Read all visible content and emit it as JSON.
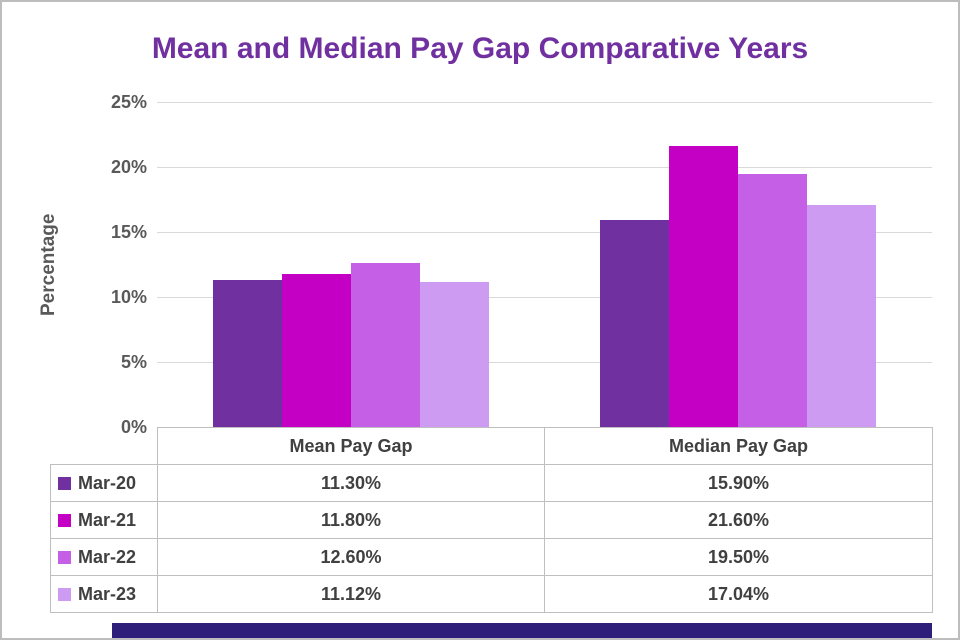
{
  "title": "Mean and Median Pay Gap Comparative Years",
  "colors": {
    "title": "#7030A0",
    "axis_text": "#595959",
    "table_text": "#404040",
    "gridline": "#D9D9D9",
    "table_border": "#BFBFBF",
    "footer_bar": "#2E1F7A"
  },
  "chart_data": {
    "type": "bar",
    "title": "Mean and Median Pay Gap Comparative Years",
    "categories": [
      "Mean Pay Gap",
      "Median Pay Gap"
    ],
    "series": [
      {
        "name": "Mar-20",
        "color": "#7030A0",
        "values": [
          11.3,
          15.9
        ],
        "display": [
          "11.30%",
          "15.90%"
        ]
      },
      {
        "name": "Mar-21",
        "color": "#C400C4",
        "values": [
          11.8,
          21.6
        ],
        "display": [
          "11.80%",
          "21.60%"
        ]
      },
      {
        "name": "Mar-22",
        "color": "#C55FE5",
        "values": [
          12.6,
          19.5
        ],
        "display": [
          "12.60%",
          "19.50%"
        ]
      },
      {
        "name": "Mar-23",
        "color": "#CD9BF2",
        "values": [
          11.12,
          17.04
        ],
        "display": [
          "11.12%",
          "17.04%"
        ]
      }
    ],
    "xlabel": "",
    "ylabel": "Percentage",
    "ylim": [
      0,
      25
    ],
    "yticks": [
      "0%",
      "5%",
      "10%",
      "15%",
      "20%",
      "25%"
    ],
    "grid": true,
    "legend_position": "data-table-left"
  }
}
